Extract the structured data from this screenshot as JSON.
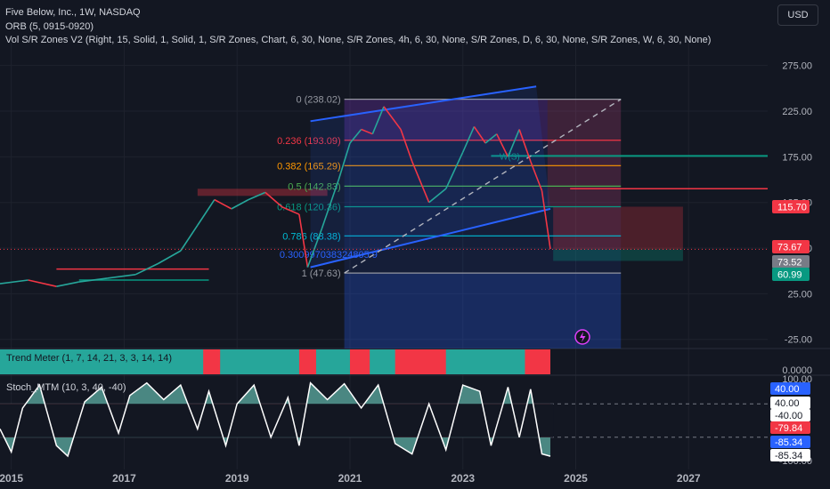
{
  "header": {
    "title": "Five Below, Inc., 1W, NASDAQ",
    "indicator1": "ORB (5, 0915-0920)",
    "indicator2": "Vol S/R Zones V2 (Right, 15, Solid, 1, Solid, 1, S/R Zones, Chart, 6, 30, None, S/R Zones, 4h, 6, 30, None, S/R Zones, D, 6, 30, None, S/R Zones, W, 6, 30, None)"
  },
  "currency_button": "USD",
  "panes": {
    "trend_meter_label": "Trend Meter (1, 7, 14, 21, 3, 3, 14, 14)",
    "stoch_label": "Stoch_MTM (10, 3, 40, -40)"
  },
  "chart_data": {
    "type": "line",
    "title": "Five Below, Inc., 1W, NASDAQ",
    "x_axis": {
      "ticks": [
        "2015",
        "2017",
        "2019",
        "2021",
        "2023",
        "2025",
        "2027"
      ],
      "range": [
        2014.8,
        2028.4
      ]
    },
    "price_axis": {
      "ticks": [
        "275.00",
        "225.00",
        "175.00",
        "125.00",
        "75.00",
        "25.00",
        "-25.00"
      ],
      "range": [
        -35,
        300
      ]
    },
    "price_series_points": [
      [
        2014.8,
        36
      ],
      [
        2015.3,
        40
      ],
      [
        2015.8,
        33
      ],
      [
        2016.2,
        38
      ],
      [
        2016.7,
        42
      ],
      [
        2017.2,
        46
      ],
      [
        2017.6,
        58
      ],
      [
        2018.0,
        72
      ],
      [
        2018.3,
        100
      ],
      [
        2018.6,
        128
      ],
      [
        2018.9,
        118
      ],
      [
        2019.2,
        128
      ],
      [
        2019.5,
        136
      ],
      [
        2019.8,
        120
      ],
      [
        2020.1,
        112
      ],
      [
        2020.25,
        54
      ],
      [
        2020.5,
        96
      ],
      [
        2020.8,
        150
      ],
      [
        2021.0,
        190
      ],
      [
        2021.2,
        205
      ],
      [
        2021.4,
        200
      ],
      [
        2021.6,
        230
      ],
      [
        2021.9,
        205
      ],
      [
        2022.1,
        170
      ],
      [
        2022.4,
        125
      ],
      [
        2022.7,
        140
      ],
      [
        2023.0,
        180
      ],
      [
        2023.2,
        208
      ],
      [
        2023.4,
        190
      ],
      [
        2023.6,
        200
      ],
      [
        2023.8,
        175
      ],
      [
        2024.0,
        205
      ],
      [
        2024.2,
        170
      ],
      [
        2024.4,
        138
      ],
      [
        2024.55,
        74
      ]
    ],
    "fibonacci_levels": [
      {
        "label": "0 (238.02)",
        "value": 238.02,
        "color": "#9598a1"
      },
      {
        "label": "0.236 (193.09)",
        "value": 193.09,
        "color": "#f23645"
      },
      {
        "label": "0.382 (165.29)",
        "value": 165.29,
        "color": "#ff9800"
      },
      {
        "label": "0.5 (142.83)",
        "value": 142.83,
        "color": "#4caf50"
      },
      {
        "label": "0.618 (120.36)",
        "value": 120.36,
        "color": "#089981"
      },
      {
        "label": "0.786 (88.38)",
        "value": 88.38,
        "color": "#00bcd4"
      },
      {
        "label": "1 (47.63)",
        "value": 47.63,
        "color": "#9598a1"
      }
    ],
    "extra_level_label": "0.300997038324805 9",
    "extra_level_value": 68,
    "channel": {
      "upper": [
        [
          2020.3,
          214
        ],
        [
          2024.3,
          252
        ]
      ],
      "lower": [
        [
          2020.3,
          54
        ],
        [
          2024.55,
          118
        ]
      ]
    },
    "mid_dashed_line": [
      [
        2020.9,
        47.63
      ],
      [
        2025.8,
        238.02
      ]
    ],
    "zone_label": "W(S)",
    "price_labels": [
      {
        "text": "115.70",
        "value": 115.7,
        "color": "#f23645"
      },
      {
        "text": "73.67",
        "value": 73.67,
        "color": "#f23645"
      },
      {
        "text": "73.52",
        "value": 73.52,
        "color": "#787b86"
      },
      {
        "text": "60.99",
        "value": 60.99,
        "color": "#089981"
      }
    ],
    "trend_meter_axis": {
      "ticks": [
        "0.0000"
      ]
    },
    "stoch_axis": {
      "ticks": [
        "100.00",
        "-100.00"
      ],
      "range": [
        -100,
        100
      ]
    },
    "stoch_levels": [
      {
        "text": "40.00",
        "value": 40,
        "color": "#2962ff"
      },
      {
        "text": "40.00",
        "value": 40,
        "color": "#131722"
      },
      {
        "text": "-40.00",
        "value": -40,
        "color": "#131722"
      },
      {
        "text": "-79.84",
        "value": -79.84,
        "color": "#f23645"
      },
      {
        "text": "-85.34",
        "value": -85.34,
        "color": "#2962ff"
      },
      {
        "text": "-85.34",
        "value": -85.34,
        "color": "#131722"
      }
    ],
    "stoch_points": [
      [
        2014.8,
        -20
      ],
      [
        2015.0,
        -75
      ],
      [
        2015.2,
        30
      ],
      [
        2015.5,
        85
      ],
      [
        2015.8,
        -60
      ],
      [
        2016.0,
        -85
      ],
      [
        2016.3,
        45
      ],
      [
        2016.6,
        80
      ],
      [
        2016.9,
        -30
      ],
      [
        2017.1,
        60
      ],
      [
        2017.4,
        90
      ],
      [
        2017.7,
        50
      ],
      [
        2018.0,
        85
      ],
      [
        2018.3,
        -20
      ],
      [
        2018.5,
        70
      ],
      [
        2018.8,
        -60
      ],
      [
        2019.0,
        40
      ],
      [
        2019.3,
        85
      ],
      [
        2019.6,
        -40
      ],
      [
        2019.9,
        55
      ],
      [
        2020.1,
        -60
      ],
      [
        2020.3,
        90
      ],
      [
        2020.6,
        50
      ],
      [
        2020.9,
        88
      ],
      [
        2021.2,
        30
      ],
      [
        2021.5,
        85
      ],
      [
        2021.8,
        -55
      ],
      [
        2022.1,
        -80
      ],
      [
        2022.4,
        40
      ],
      [
        2022.7,
        -70
      ],
      [
        2023.0,
        85
      ],
      [
        2023.3,
        70
      ],
      [
        2023.5,
        -60
      ],
      [
        2023.8,
        80
      ],
      [
        2024.0,
        -40
      ],
      [
        2024.2,
        75
      ],
      [
        2024.4,
        -79.84
      ],
      [
        2024.55,
        -85.34
      ]
    ],
    "colors": {
      "bull": "#26a69a",
      "bear": "#f23645",
      "channel": "#2962ff",
      "background": "#131722"
    }
  }
}
